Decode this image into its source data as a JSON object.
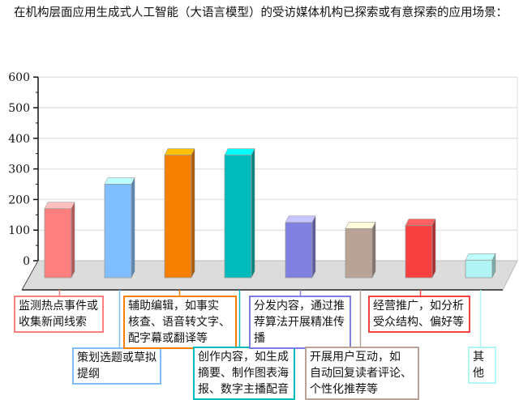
{
  "chart_data": {
    "type": "bar",
    "title": "在机构层面应用生成式人工智能（大语言模型）的受访媒体机构已探索或有意探索的应用场景：",
    "categories": [
      "监测热点事件或\n收集新闻线索",
      "策划选题或草拟\n提纲",
      "辅助编辑，如事实\n核查、语音转文字、\n配字幕或翻译等",
      "创作内容，如生成\n摘要、制作图表海\n报、数字主播配音",
      "分发内容，通过推\n荐算法开展精准传\n播",
      "开展用户互动，如\n自动回复读者评论、\n个性化推荐等",
      "经营推广，如分析\n受众结构、偏好等",
      "其他"
    ],
    "values": [
      170,
      250,
      345,
      345,
      125,
      105,
      115,
      2
    ],
    "colors": [
      "#ff7f7f",
      "#7fbfff",
      "#f77f00",
      "#00bbbb",
      "#8080e0",
      "#b9a396",
      "#f74040",
      "#b0f4f4"
    ],
    "top_colors": [
      "#ffc0c0",
      "#c0ffff",
      "#ffc000",
      "#00ffff",
      "#c8c4ff",
      "#fffbdc",
      "#ff6060",
      "#c0ffff"
    ],
    "yticks": [
      "0",
      "100",
      "200",
      "300",
      "400",
      "500",
      "600"
    ],
    "ylim": [
      0,
      600
    ],
    "grid": true,
    "xlabel": "",
    "ylabel": "",
    "legend": "none"
  }
}
